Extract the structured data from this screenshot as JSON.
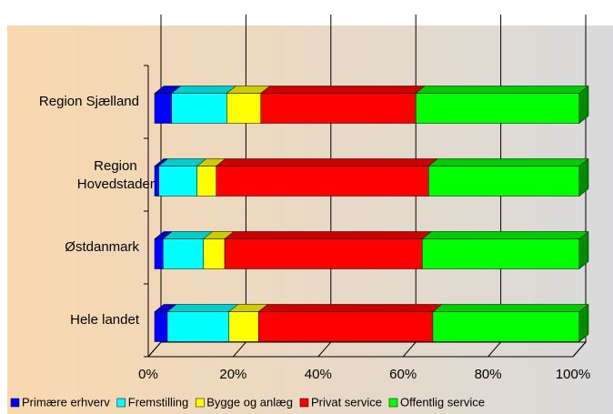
{
  "chart_data": {
    "type": "bar",
    "orientation": "horizontal",
    "stacked": true,
    "categories": [
      "Region Sjælland",
      "Region Hovedstaden",
      "Østdanmark",
      "Hele landet"
    ],
    "series": [
      {
        "name": "Primære erhverv",
        "color": "#0000ff",
        "values": [
          4,
          1,
          2,
          3
        ]
      },
      {
        "name": "Fremstilling",
        "color": "#00ffff",
        "values": [
          13,
          9,
          9.5,
          14.5
        ]
      },
      {
        "name": "Bygge og anlæg",
        "color": "#ffff00",
        "values": [
          8,
          4.5,
          5,
          7
        ]
      },
      {
        "name": "Privat service",
        "color": "#ff0000",
        "values": [
          36.5,
          50,
          46.5,
          41
        ]
      },
      {
        "name": "Offentlig service",
        "color": "#00ff00",
        "values": [
          38.5,
          35.5,
          37,
          34.5
        ]
      }
    ],
    "xlim": [
      0,
      100
    ],
    "xticks": [
      {
        "value": 0,
        "label": "0%"
      },
      {
        "value": 20,
        "label": "20%"
      },
      {
        "value": 40,
        "label": "40%"
      },
      {
        "value": 60,
        "label": "60%"
      },
      {
        "value": 80,
        "label": "80%"
      },
      {
        "value": 100,
        "label": "100%"
      }
    ],
    "grid": true,
    "legend": "bottom"
  }
}
